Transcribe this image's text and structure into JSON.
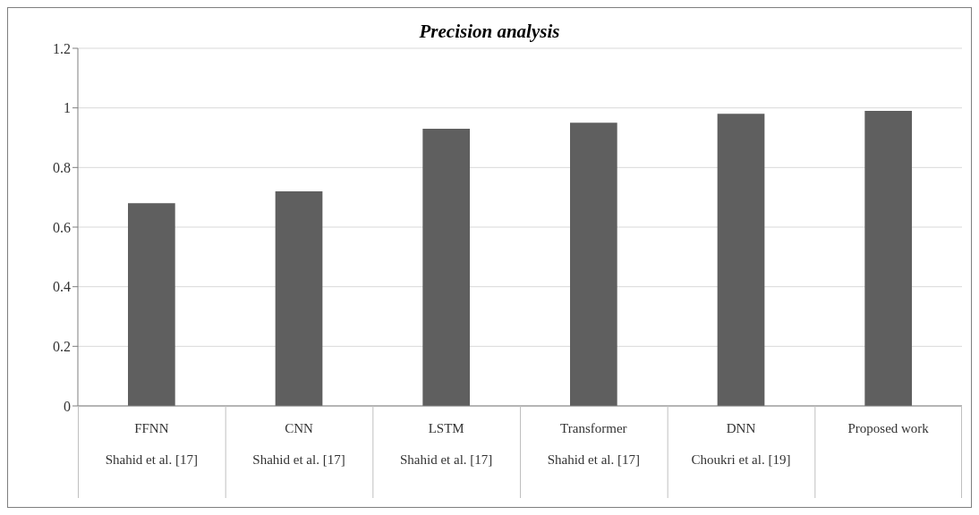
{
  "chart_data": {
    "type": "bar",
    "title": "Precision analysis",
    "categories": [
      "FFNN\nShahid et al. [17]",
      "CNN\nShahid et al. [17]",
      "LSTM\nShahid et al. [17]",
      "Transformer\nShahid et al. [17]",
      "DNN\nChoukri et al. [19]",
      "Proposed work"
    ],
    "values": [
      0.68,
      0.72,
      0.93,
      0.95,
      0.98,
      0.99
    ],
    "color": "#5f5f5f",
    "ylim": [
      0,
      1.2
    ],
    "yticks": [
      0,
      0.2,
      0.4,
      0.6,
      0.8,
      1,
      1.2
    ],
    "grid": "y"
  }
}
